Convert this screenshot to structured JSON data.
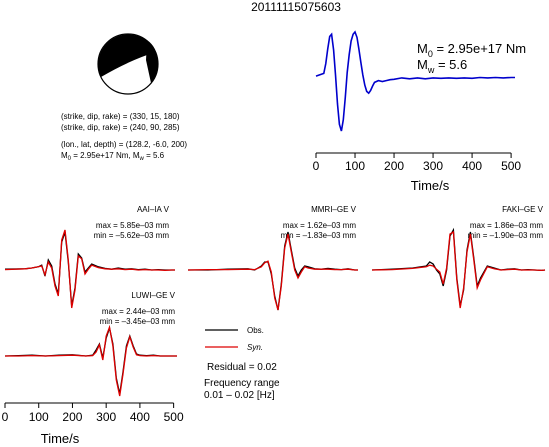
{
  "chart_data": {
    "type": "line",
    "title": "20111115075603",
    "focal_mechanism": {
      "nodal_plane_1": "(strike, dip, rake) = (330, 15, 180)",
      "nodal_plane_2": "(strike, dip, rake) = (240, 90, 285)",
      "location": "(lon., lat, depth) = (128.2, -6.0, 200)",
      "moment_line": "M",
      "moment_sub": "0",
      "moment_value": " = 2.95e+17 Nm, M",
      "mw_sub": "w",
      "mw_value": " = 5.6",
      "beachball_colors": [
        "#000000",
        "#ffffff"
      ]
    },
    "source_time_function": {
      "m0_label": "M",
      "m0_sub": "0",
      "m0_value": " = 2.95e+17 Nm",
      "mw_label": "M",
      "mw_sub": "w",
      "mw_value": " = 5.6",
      "xlabel": "Time/s",
      "xlim": [
        0,
        510
      ],
      "xticks": [
        0,
        100,
        200,
        300,
        400,
        500
      ],
      "color": "#0000cc",
      "series": [
        {
          "x": [
            0,
            20,
            25,
            30,
            35,
            40,
            45,
            50,
            55,
            60,
            65,
            70,
            75,
            80,
            85,
            90,
            95,
            100,
            105,
            110,
            115,
            120,
            125,
            130,
            135,
            140,
            145,
            150,
            160,
            170,
            180,
            190,
            200,
            220,
            240,
            260,
            280,
            300,
            320,
            340,
            360,
            380,
            400,
            420,
            440,
            460,
            480,
            500,
            510
          ],
          "y": [
            0.02,
            0.08,
            0.3,
            0.62,
            0.9,
            0.95,
            0.6,
            0.05,
            -0.6,
            -1.05,
            -1.2,
            -0.95,
            -0.45,
            0.1,
            0.5,
            0.8,
            0.95,
            1.0,
            0.88,
            0.62,
            0.32,
            0.05,
            -0.18,
            -0.32,
            -0.36,
            -0.3,
            -0.2,
            -0.12,
            -0.08,
            -0.1,
            -0.08,
            -0.06,
            -0.05,
            -0.02,
            -0.04,
            -0.02,
            -0.04,
            -0.02,
            -0.03,
            -0.02,
            -0.03,
            -0.02,
            -0.03,
            -0.01,
            -0.02,
            -0.01,
            -0.02,
            -0.01,
            -0.01
          ]
        }
      ]
    },
    "waveforms": [
      {
        "station": "AAI–IA V",
        "max": "max = 5.85e–03 mm",
        "min": "min = –5.62e–03 mm",
        "obs": {
          "x": [
            0,
            60,
            80,
            100,
            110,
            120,
            130,
            140,
            150,
            160,
            170,
            180,
            190,
            200,
            210,
            220,
            230,
            240,
            250,
            260,
            280,
            300,
            320,
            340,
            360,
            380,
            400,
            420,
            440,
            460,
            480,
            500,
            510
          ],
          "y": [
            0.02,
            0.03,
            0.05,
            0.08,
            0.12,
            -0.15,
            0.25,
            0.1,
            -0.35,
            -0.6,
            0.7,
            0.95,
            0.2,
            -0.9,
            -0.45,
            0.4,
            0.3,
            -0.05,
            0.05,
            0.15,
            0.08,
            0.04,
            0.02,
            0.05,
            0.02,
            0.03,
            0.01,
            0.02,
            0.0,
            0.01,
            0.0,
            0.0,
            0.0
          ]
        },
        "syn": {
          "x": [
            0,
            60,
            80,
            100,
            110,
            120,
            130,
            140,
            150,
            160,
            170,
            180,
            190,
            200,
            210,
            220,
            230,
            240,
            250,
            260,
            280,
            300,
            320,
            340,
            360,
            380,
            400,
            420,
            440,
            460,
            480,
            500,
            510
          ],
          "y": [
            0.01,
            0.03,
            0.05,
            0.08,
            0.1,
            -0.12,
            0.2,
            0.05,
            -0.4,
            -0.65,
            0.75,
            1.0,
            0.25,
            -0.95,
            -0.5,
            0.35,
            0.28,
            -0.1,
            0.02,
            0.12,
            0.06,
            0.03,
            0.02,
            0.03,
            0.01,
            0.02,
            0.0,
            0.01,
            0.0,
            0.0,
            -0.01,
            0.0,
            0.0
          ]
        }
      },
      {
        "station": "MMRI–GE V",
        "max": "max = 1.62e–03 mm",
        "min": "min = –1.83e–03 mm",
        "obs": {
          "x": [
            0,
            60,
            120,
            180,
            200,
            220,
            230,
            240,
            250,
            260,
            270,
            280,
            290,
            300,
            310,
            320,
            330,
            340,
            350,
            360,
            380,
            400,
            420,
            440,
            460,
            480,
            500,
            510
          ],
          "y": [
            0.0,
            0.0,
            0.02,
            0.03,
            0.0,
            0.1,
            0.2,
            0.2,
            -0.1,
            -0.65,
            -1.0,
            -0.35,
            0.6,
            0.95,
            0.5,
            0.05,
            -0.15,
            0.0,
            0.1,
            0.08,
            0.03,
            0.02,
            0.04,
            0.02,
            0.01,
            0.03,
            0.0,
            0.0
          ]
        },
        "syn": {
          "x": [
            0,
            60,
            120,
            180,
            200,
            220,
            230,
            240,
            250,
            260,
            270,
            280,
            290,
            300,
            310,
            320,
            330,
            340,
            350,
            360,
            380,
            400,
            420,
            440,
            460,
            480,
            500,
            510
          ],
          "y": [
            0.0,
            0.01,
            0.01,
            0.02,
            0.01,
            0.08,
            0.18,
            0.22,
            -0.05,
            -0.7,
            -1.0,
            -0.4,
            0.55,
            0.9,
            0.45,
            0.0,
            -0.2,
            -0.05,
            0.08,
            0.05,
            0.02,
            0.02,
            0.02,
            0.01,
            0.01,
            0.02,
            0.0,
            0.0
          ]
        }
      },
      {
        "station": "FAKI–GE V",
        "max": "max = 1.86e–03 mm",
        "min": "min = –1.90e–03 mm",
        "obs": {
          "x": [
            0,
            60,
            120,
            160,
            170,
            180,
            190,
            200,
            210,
            220,
            230,
            240,
            250,
            260,
            270,
            280,
            290,
            300,
            310,
            320,
            340,
            360,
            380,
            400,
            420,
            440,
            460,
            480,
            500,
            510
          ],
          "y": [
            0.0,
            0.02,
            0.05,
            0.1,
            0.2,
            0.15,
            0.0,
            -0.1,
            -0.4,
            0.0,
            0.85,
            1.0,
            -0.2,
            -0.9,
            -0.5,
            0.5,
            0.95,
            0.3,
            -0.4,
            -0.2,
            0.1,
            0.05,
            0.0,
            0.02,
            0.03,
            0.0,
            0.01,
            0.0,
            -0.01,
            0.0
          ]
        },
        "syn": {
          "x": [
            0,
            60,
            120,
            160,
            170,
            180,
            190,
            200,
            210,
            220,
            230,
            240,
            250,
            260,
            270,
            280,
            290,
            300,
            310,
            320,
            340,
            360,
            380,
            400,
            420,
            440,
            460,
            480,
            500,
            510
          ],
          "y": [
            0.0,
            0.01,
            0.04,
            0.08,
            0.12,
            0.1,
            0.02,
            -0.05,
            -0.35,
            0.05,
            0.9,
            0.95,
            -0.25,
            -0.95,
            -0.45,
            0.45,
            0.9,
            0.25,
            -0.45,
            -0.25,
            0.08,
            0.03,
            0.0,
            0.01,
            0.02,
            0.0,
            0.0,
            0.0,
            -0.01,
            0.0
          ]
        }
      },
      {
        "station": "LUWI–GE V",
        "max": "max = 2.44e–03 mm",
        "min": "min = –3.45e–03 mm",
        "obs": {
          "x": [
            0,
            40,
            80,
            120,
            160,
            200,
            240,
            260,
            270,
            280,
            290,
            300,
            310,
            320,
            330,
            340,
            350,
            360,
            370,
            380,
            390,
            400,
            420,
            440,
            460,
            480,
            500,
            510
          ],
          "y": [
            0.0,
            0.01,
            0.02,
            0.0,
            0.02,
            0.03,
            0.0,
            0.02,
            0.15,
            0.3,
            -0.05,
            0.45,
            0.7,
            0.3,
            -0.55,
            -0.95,
            -0.4,
            0.25,
            0.5,
            0.25,
            0.05,
            0.02,
            0.01,
            0.02,
            0.0,
            0.0,
            0.0,
            0.0
          ]
        },
        "syn": {
          "x": [
            0,
            40,
            80,
            120,
            160,
            200,
            240,
            260,
            270,
            280,
            290,
            300,
            310,
            320,
            330,
            340,
            350,
            360,
            370,
            380,
            390,
            400,
            420,
            440,
            460,
            480,
            500,
            510
          ],
          "y": [
            0.0,
            0.0,
            0.01,
            0.0,
            0.01,
            0.02,
            0.0,
            0.01,
            0.1,
            0.28,
            -0.1,
            0.5,
            0.72,
            0.25,
            -0.6,
            -1.0,
            -0.45,
            0.2,
            0.48,
            0.22,
            0.03,
            0.01,
            0.0,
            0.01,
            0.0,
            0.0,
            0.0,
            0.0
          ]
        }
      }
    ],
    "legend": {
      "obs_label": "Obs.",
      "syn_label": "Syn.",
      "obs_color": "#000000",
      "syn_color": "#dd0000",
      "residual": "Residual = 0.02",
      "freq_line1": "Frequency range",
      "freq_line2": "0.01 – 0.02 [Hz]"
    },
    "bottom_axis": {
      "xlabel": "Time/s",
      "xlim": [
        0,
        510
      ],
      "xticks": [
        0,
        100,
        200,
        300,
        400,
        500
      ]
    }
  }
}
